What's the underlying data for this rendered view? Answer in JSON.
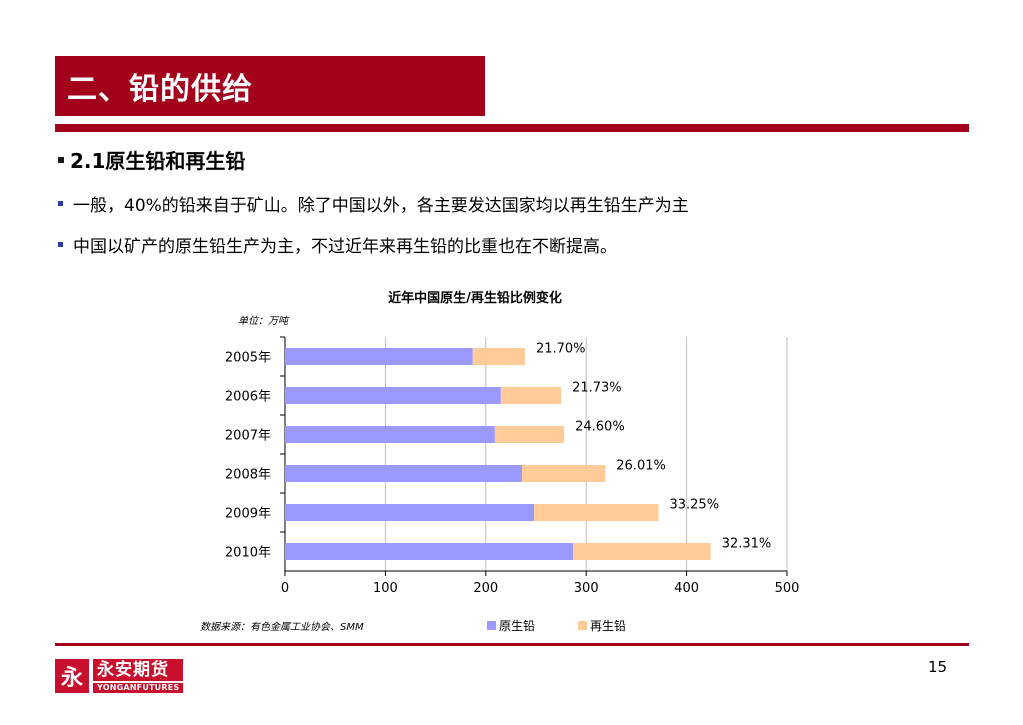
{
  "slide": {
    "title": "二、铅的供给",
    "section_heading": "2.1原生铅和再生铅",
    "bullets": [
      "一般，40%的铅来自于矿山。除了中国以外，各主要发达国家均以再生铅生产为主",
      "中国以矿产的原生铅生产为主，不过近年来再生铅的比重也在不断提高。"
    ],
    "page_number": "15",
    "accent_color": "#a3001c"
  },
  "logo": {
    "mark": "永",
    "name_cn": "永安期货",
    "name_en": "YONGANFUTURES"
  },
  "chart_data": {
    "type": "bar",
    "orientation": "horizontal",
    "stacked": true,
    "title": "近年中国原生/再生铅比例变化",
    "unit_note": "单位：万吨",
    "source_note": "数据来源：有色金属工业协会、SMM",
    "categories": [
      "2005年",
      "2006年",
      "2007年",
      "2008年",
      "2009年",
      "2010年"
    ],
    "series": [
      {
        "name": "原生铅",
        "color": "#9999ff",
        "values": [
          187,
          215,
          209,
          236,
          248,
          287
        ]
      },
      {
        "name": "再生铅",
        "color": "#ffcc99",
        "values": [
          52,
          60,
          69,
          83,
          124,
          137
        ]
      }
    ],
    "data_labels": [
      "21.70%",
      "21.73%",
      "24.60%",
      "26.01%",
      "33.25%",
      "32.31%"
    ],
    "xlim": [
      0,
      500
    ],
    "xticks": [
      0,
      100,
      200,
      300,
      400,
      500
    ],
    "grid": true,
    "legend_position": "bottom"
  }
}
